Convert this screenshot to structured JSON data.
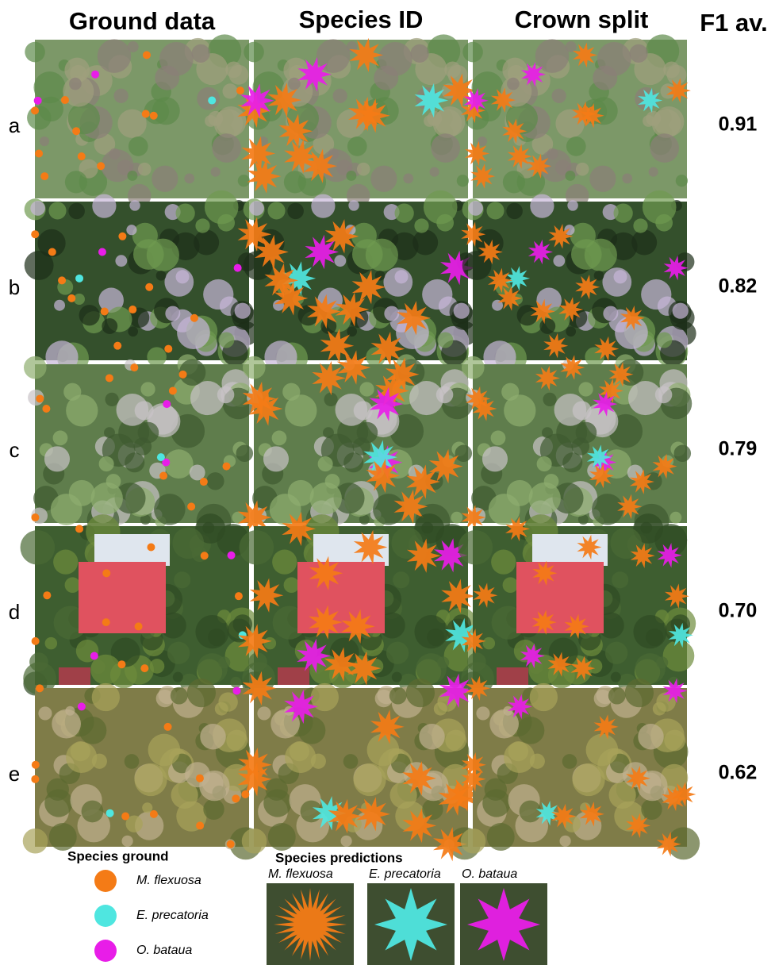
{
  "headers": {
    "columns": [
      "Ground data",
      "Species ID",
      "Crown split"
    ],
    "f1": "F1 av."
  },
  "rows": [
    {
      "label": "a",
      "f1": "0.91"
    },
    {
      "label": "b",
      "f1": "0.82"
    },
    {
      "label": "c",
      "f1": "0.79"
    },
    {
      "label": "d",
      "f1": "0.70"
    },
    {
      "label": "e",
      "f1": "0.62"
    }
  ],
  "legend": {
    "ground_title": "Species ground",
    "ground": [
      {
        "name": "M. flexuosa",
        "color": "#f47b16"
      },
      {
        "name": "E. precatoria",
        "color": "#4fe6e0"
      },
      {
        "name": "O. bataua",
        "color": "#e81de8"
      }
    ],
    "predictions_title": "Species predictions",
    "predictions": [
      "M. flexuosa",
      "E. precatoria",
      "O. bataua"
    ]
  }
}
